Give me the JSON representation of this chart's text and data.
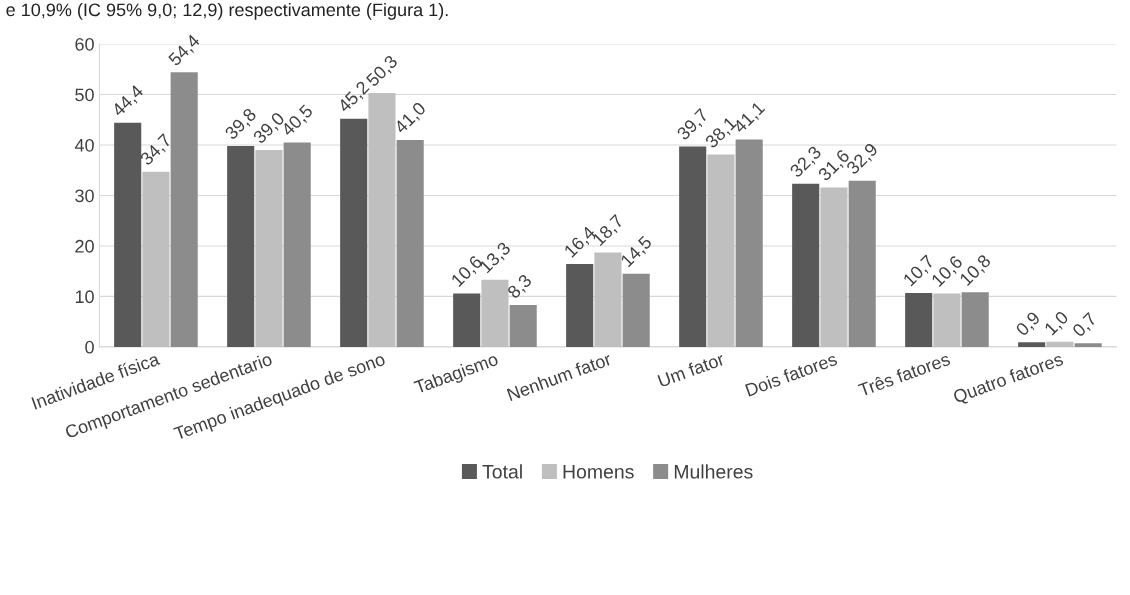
{
  "chart_data": {
    "type": "bar",
    "categories": [
      "Inatividade física",
      "Comportamento sedentario",
      "Tempo inadequado de sono",
      "Tabagismo",
      "Nenhum fator",
      "Um fator",
      "Dois fatores",
      "Três fatores",
      "Quatro fatores"
    ],
    "series": [
      {
        "name": "Total",
        "color": "#595959",
        "values": [
          44.4,
          39.8,
          45.2,
          10.6,
          16.4,
          39.7,
          32.3,
          10.7,
          0.9
        ],
        "value_labels": [
          "44,4",
          "39,8",
          "45,2",
          "10,6",
          "16,4",
          "39,7",
          "32,3",
          "10,7",
          "0,9"
        ]
      },
      {
        "name": "Homens",
        "color": "#bfbfbf",
        "values": [
          34.7,
          39.0,
          50.3,
          13.3,
          18.7,
          38.1,
          31.6,
          10.6,
          1.0
        ],
        "value_labels": [
          "34,7",
          "39,0",
          "50,3",
          "13,3",
          "18,7",
          "38,1",
          "31,6",
          "10,6",
          "1,0"
        ]
      },
      {
        "name": "Mulheres",
        "color": "#8c8c8c",
        "values": [
          54.4,
          40.5,
          41.0,
          8.3,
          14.5,
          41.1,
          32.9,
          10.8,
          0.7
        ],
        "value_labels": [
          "54,4",
          "40,5",
          "41,0",
          "8,3",
          "14,5",
          "41,1",
          "32,9",
          "10,8",
          "0,7"
        ]
      }
    ],
    "ylim": [
      0,
      60
    ],
    "yticks": [
      0,
      10,
      20,
      30,
      40,
      50,
      60
    ],
    "grid": "y",
    "legend": "bottom",
    "annotations": [
      "e 10,9% (IC 95% 9,0; 12,9) respectivamente (Figura 1)."
    ]
  }
}
